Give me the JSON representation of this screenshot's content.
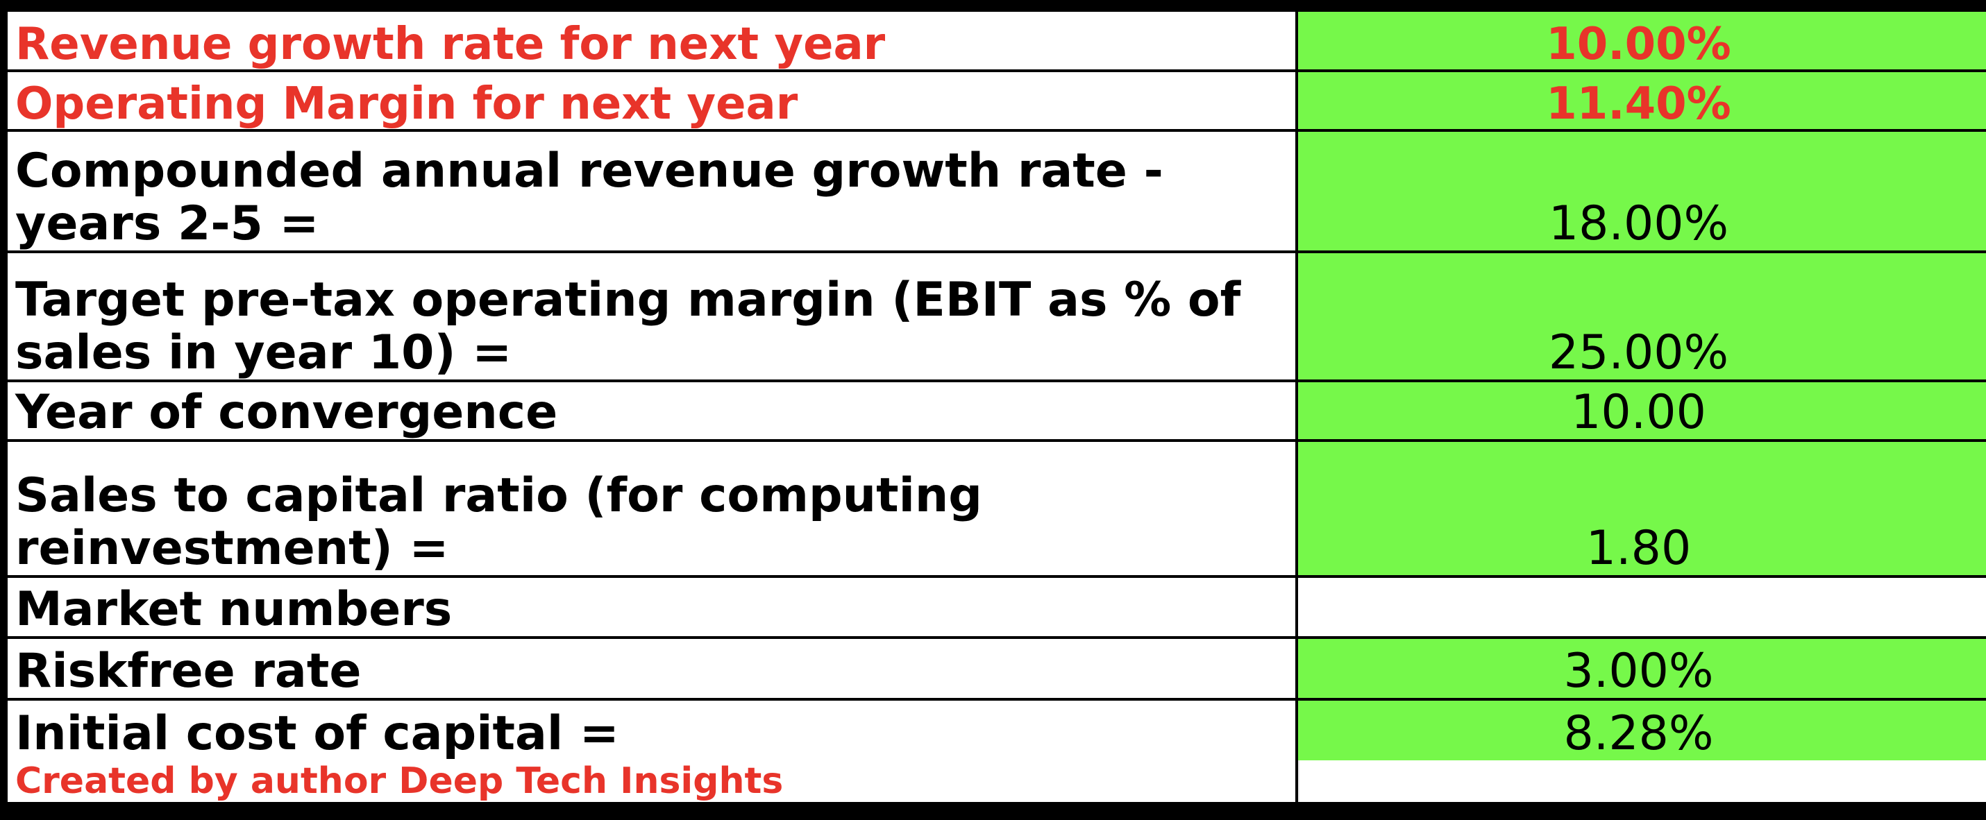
{
  "rows": [
    {
      "label_lines": [
        "Revenue growth rate for next year"
      ],
      "value": "10.00%"
    },
    {
      "label_lines": [
        "Operating Margin for next year"
      ],
      "value": "11.40%"
    },
    {
      "label_lines": [
        "Compounded annual revenue growth rate -",
        "years 2-5 ="
      ],
      "value": "18.00%"
    },
    {
      "label_lines": [
        "Target pre-tax operating margin (EBIT as % of",
        "sales in year 10) ="
      ],
      "value": "25.00%"
    },
    {
      "label_lines": [
        "Year of convergence"
      ],
      "value": "10.00"
    },
    {
      "label_lines": [
        "Sales to capital ratio  (for computing",
        "reinvestment) ="
      ],
      "value": "1.80"
    },
    {
      "label_lines": [
        "Market numbers"
      ],
      "value": ""
    },
    {
      "label_lines": [
        "Riskfree rate"
      ],
      "value": "3.00%"
    },
    {
      "label_lines": [
        "Initial cost of capital ="
      ],
      "value": "8.28%"
    }
  ],
  "footer": {
    "credit": "Created by author Deep Tech Insights"
  },
  "colors": {
    "accent_red": "#e8342a",
    "input_green": "#76f84a",
    "grid": "#000000"
  }
}
